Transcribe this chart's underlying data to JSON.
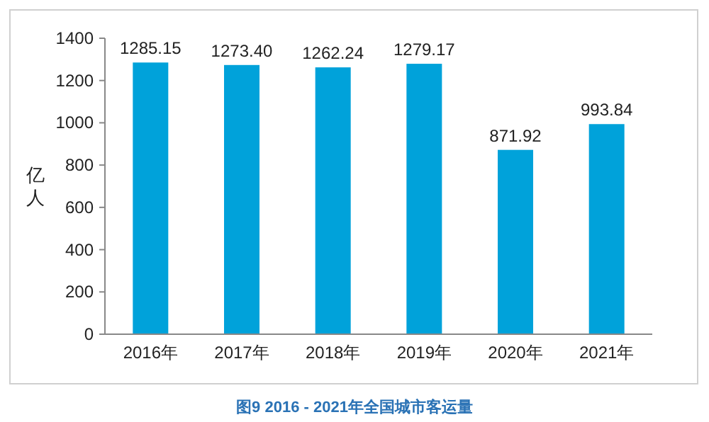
{
  "chart_data": {
    "type": "bar",
    "title": "图9  2016 - 2021年全国城市客运量",
    "ylabel": "亿人",
    "categories": [
      "2016年",
      "2017年",
      "2018年",
      "2019年",
      "2020年",
      "2021年"
    ],
    "values": [
      1285.15,
      1273.4,
      1262.24,
      1279.17,
      871.92,
      993.84
    ],
    "value_labels": [
      "1285.15",
      "1273.40",
      "1262.24",
      "1279.17",
      "871.92",
      "993.84"
    ],
    "color": "#00a2da",
    "ylim": [
      0,
      1400
    ],
    "yticks": [
      0,
      200,
      400,
      600,
      800,
      1000,
      1200,
      1400
    ]
  }
}
